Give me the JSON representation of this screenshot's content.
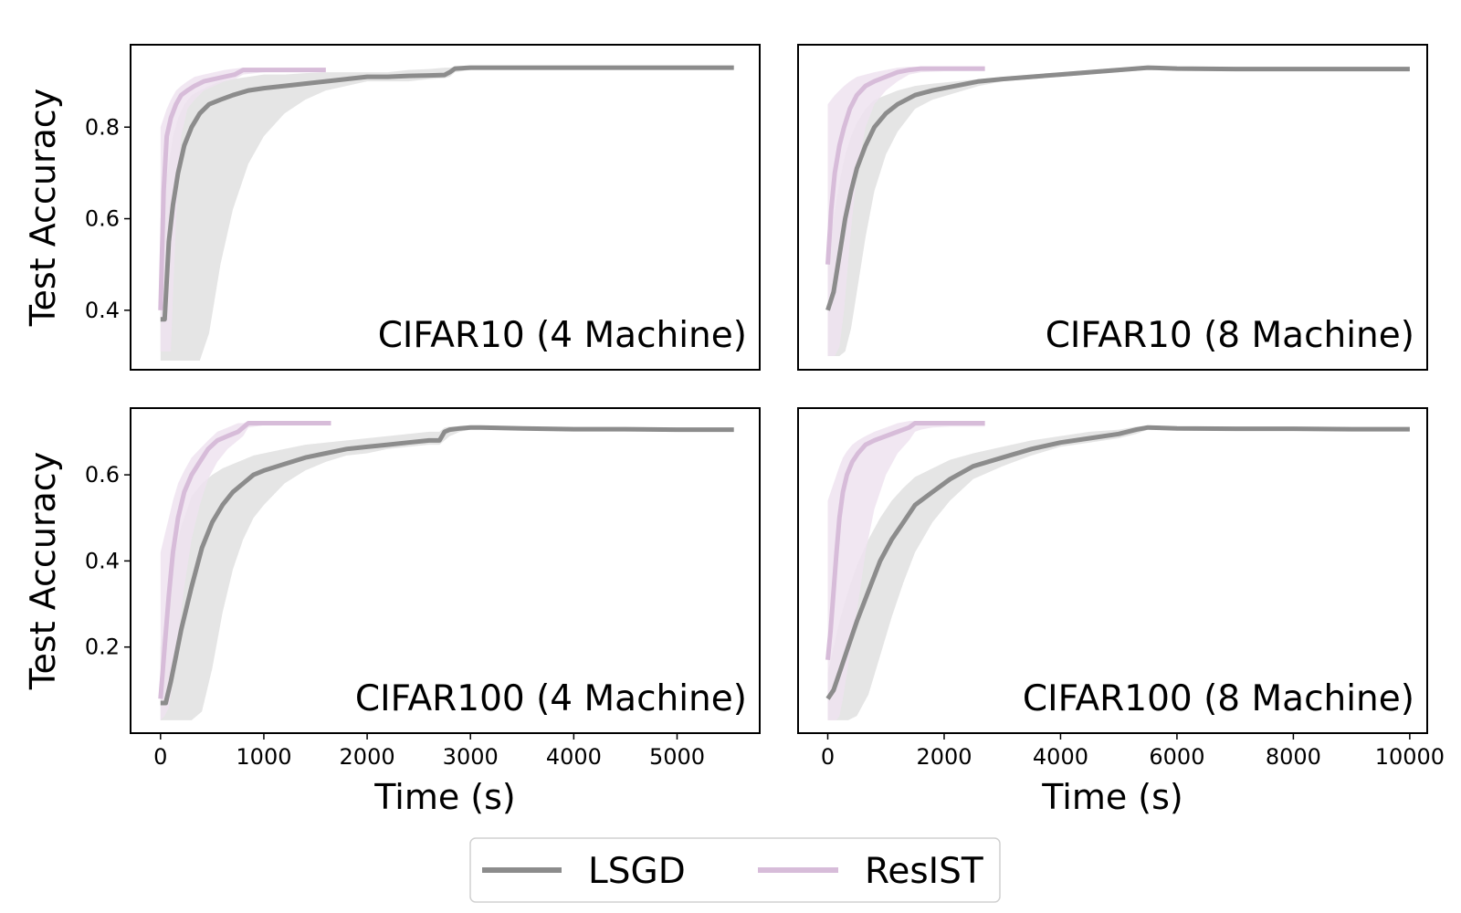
{
  "chart_data": [
    {
      "type": "line",
      "title": "CIFAR10 (4 Machine)",
      "xlabel": "",
      "ylabel": "Test Accuracy",
      "xlim": [
        -290,
        5800
      ],
      "ylim": [
        0.27,
        0.98
      ],
      "xticks": [],
      "yticks": [
        "0.4",
        "0.6",
        "0.8"
      ],
      "ytick_values": [
        0.4,
        0.6,
        0.8
      ],
      "series": [
        {
          "name": "LSGD",
          "color": "#8c8c8c",
          "band_color": "#e0e0e0",
          "x": [
            0,
            40,
            80,
            120,
            170,
            230,
            300,
            380,
            470,
            580,
            700,
            850,
            1000,
            1200,
            1400,
            1600,
            1800,
            2000,
            2200,
            2400,
            2600,
            2750,
            2800,
            2850,
            3000,
            3500,
            4000,
            4500,
            5000,
            5550
          ],
          "y": [
            0.38,
            0.38,
            0.55,
            0.63,
            0.7,
            0.76,
            0.8,
            0.83,
            0.85,
            0.86,
            0.87,
            0.88,
            0.885,
            0.89,
            0.895,
            0.9,
            0.905,
            0.91,
            0.91,
            0.912,
            0.913,
            0.914,
            0.92,
            0.928,
            0.93,
            0.93,
            0.93,
            0.93,
            0.93,
            0.93
          ],
          "lower": [
            0.29,
            0.29,
            0.29,
            0.29,
            0.29,
            0.29,
            0.29,
            0.29,
            0.35,
            0.5,
            0.62,
            0.72,
            0.78,
            0.83,
            0.86,
            0.88,
            0.89,
            0.9,
            0.9,
            0.9,
            0.905,
            0.907,
            0.91,
            0.92,
            0.925,
            0.928,
            0.928,
            0.928,
            0.928,
            0.928
          ],
          "upper": [
            0.6,
            0.66,
            0.72,
            0.78,
            0.82,
            0.85,
            0.87,
            0.88,
            0.89,
            0.9,
            0.905,
            0.91,
            0.915,
            0.915,
            0.918,
            0.92,
            0.92,
            0.92,
            0.92,
            0.925,
            0.927,
            0.93,
            0.93,
            0.932,
            0.932,
            0.932,
            0.932,
            0.932,
            0.932,
            0.932
          ]
        },
        {
          "name": "ResIST",
          "color": "#d7bcd9",
          "band_color": "#efe3f0",
          "x": [
            0,
            30,
            60,
            100,
            150,
            200,
            260,
            330,
            420,
            520,
            620,
            720,
            800,
            1000,
            1200,
            1400,
            1600
          ],
          "y": [
            0.4,
            0.66,
            0.78,
            0.82,
            0.85,
            0.87,
            0.88,
            0.89,
            0.9,
            0.905,
            0.91,
            0.915,
            0.925,
            0.925,
            0.925,
            0.925,
            0.925
          ],
          "lower": [
            0.31,
            0.31,
            0.31,
            0.31,
            0.6,
            0.78,
            0.84,
            0.86,
            0.88,
            0.89,
            0.9,
            0.905,
            0.915,
            0.92,
            0.922,
            0.922,
            0.922
          ],
          "upper": [
            0.8,
            0.82,
            0.84,
            0.86,
            0.88,
            0.89,
            0.9,
            0.91,
            0.915,
            0.92,
            0.925,
            0.928,
            0.93,
            0.93,
            0.93,
            0.93,
            0.93
          ]
        }
      ]
    },
    {
      "type": "line",
      "title": "CIFAR10 (8 Machine)",
      "xlabel": "",
      "ylabel": "",
      "xlim": [
        -510,
        10300
      ],
      "ylim": [
        0.27,
        0.98
      ],
      "xticks": [],
      "yticks": [],
      "series": [
        {
          "name": "LSGD",
          "color": "#8c8c8c",
          "band_color": "#e0e0e0",
          "x": [
            0,
            100,
            200,
            300,
            400,
            500,
            650,
            800,
            1000,
            1200,
            1500,
            1800,
            2200,
            2600,
            3000,
            3500,
            4000,
            4500,
            5000,
            5500,
            6000,
            7000,
            8000,
            9000,
            10000
          ],
          "y": [
            0.4,
            0.44,
            0.52,
            0.6,
            0.66,
            0.71,
            0.76,
            0.8,
            0.83,
            0.85,
            0.87,
            0.88,
            0.89,
            0.9,
            0.905,
            0.91,
            0.915,
            0.92,
            0.925,
            0.93,
            0.928,
            0.927,
            0.927,
            0.927,
            0.927
          ],
          "lower": [
            0.3,
            0.3,
            0.3,
            0.31,
            0.36,
            0.44,
            0.56,
            0.66,
            0.74,
            0.79,
            0.84,
            0.86,
            0.875,
            0.89,
            0.9,
            0.905,
            0.91,
            0.915,
            0.92,
            0.925,
            0.925,
            0.925,
            0.925,
            0.925,
            0.925
          ],
          "upper": [
            0.52,
            0.6,
            0.68,
            0.74,
            0.78,
            0.81,
            0.84,
            0.86,
            0.87,
            0.88,
            0.89,
            0.895,
            0.9,
            0.905,
            0.91,
            0.915,
            0.92,
            0.925,
            0.93,
            0.932,
            0.93,
            0.93,
            0.93,
            0.93,
            0.93
          ]
        },
        {
          "name": "ResIST",
          "color": "#d7bcd9",
          "band_color": "#efe3f0",
          "x": [
            0,
            60,
            120,
            200,
            280,
            380,
            500,
            650,
            800,
            1000,
            1200,
            1400,
            1600,
            2000,
            2400,
            2700
          ],
          "y": [
            0.5,
            0.62,
            0.7,
            0.76,
            0.8,
            0.84,
            0.87,
            0.89,
            0.9,
            0.91,
            0.92,
            0.925,
            0.928,
            0.928,
            0.928,
            0.928
          ],
          "lower": [
            0.3,
            0.3,
            0.3,
            0.32,
            0.4,
            0.55,
            0.7,
            0.8,
            0.85,
            0.88,
            0.9,
            0.915,
            0.92,
            0.922,
            0.922,
            0.922
          ],
          "upper": [
            0.85,
            0.86,
            0.87,
            0.88,
            0.89,
            0.9,
            0.91,
            0.915,
            0.92,
            0.925,
            0.93,
            0.932,
            0.932,
            0.932,
            0.932,
            0.932
          ]
        }
      ]
    },
    {
      "type": "line",
      "title": "CIFAR100 (4 Machine)",
      "xlabel": "Time (s)",
      "ylabel": "Test Accuracy",
      "xlim": [
        -290,
        5800
      ],
      "ylim": [
        0.0,
        0.755
      ],
      "xticks": [
        "0",
        "1000",
        "2000",
        "3000",
        "4000",
        "5000"
      ],
      "xtick_values": [
        0,
        1000,
        2000,
        3000,
        4000,
        5000
      ],
      "yticks": [
        "0.2",
        "0.4",
        "0.6"
      ],
      "ytick_values": [
        0.2,
        0.4,
        0.6
      ],
      "series": [
        {
          "name": "LSGD",
          "color": "#8c8c8c",
          "band_color": "#e0e0e0",
          "x": [
            0,
            50,
            100,
            150,
            200,
            300,
            400,
            500,
            600,
            700,
            800,
            900,
            1000,
            1200,
            1400,
            1600,
            1800,
            2000,
            2200,
            2400,
            2600,
            2700,
            2750,
            2800,
            2900,
            3000,
            3100,
            3500,
            4000,
            4500,
            5000,
            5550
          ],
          "y": [
            0.07,
            0.07,
            0.12,
            0.18,
            0.24,
            0.34,
            0.43,
            0.49,
            0.53,
            0.56,
            0.58,
            0.6,
            0.61,
            0.625,
            0.64,
            0.65,
            0.66,
            0.665,
            0.67,
            0.675,
            0.68,
            0.68,
            0.7,
            0.705,
            0.708,
            0.71,
            0.71,
            0.708,
            0.706,
            0.706,
            0.705,
            0.705
          ],
          "lower": [
            0.03,
            0.03,
            0.03,
            0.03,
            0.03,
            0.03,
            0.05,
            0.15,
            0.28,
            0.38,
            0.45,
            0.5,
            0.53,
            0.58,
            0.61,
            0.63,
            0.645,
            0.65,
            0.66,
            0.665,
            0.67,
            0.67,
            0.68,
            0.69,
            0.7,
            0.705,
            0.705,
            0.705,
            0.703,
            0.703,
            0.703,
            0.703
          ],
          "upper": [
            0.2,
            0.28,
            0.36,
            0.43,
            0.48,
            0.55,
            0.58,
            0.6,
            0.615,
            0.625,
            0.635,
            0.645,
            0.65,
            0.66,
            0.67,
            0.675,
            0.68,
            0.685,
            0.69,
            0.695,
            0.7,
            0.7,
            0.71,
            0.712,
            0.713,
            0.714,
            0.714,
            0.712,
            0.709,
            0.709,
            0.708,
            0.708
          ]
        },
        {
          "name": "ResIST",
          "color": "#d7bcd9",
          "band_color": "#efe3f0",
          "x": [
            0,
            40,
            80,
            120,
            170,
            230,
            300,
            380,
            460,
            550,
            650,
            750,
            800,
            850,
            1000,
            1200,
            1400,
            1650
          ],
          "y": [
            0.08,
            0.2,
            0.32,
            0.42,
            0.5,
            0.56,
            0.6,
            0.63,
            0.66,
            0.68,
            0.69,
            0.7,
            0.71,
            0.72,
            0.72,
            0.72,
            0.72,
            0.72
          ],
          "lower": [
            0.03,
            0.04,
            0.06,
            0.12,
            0.22,
            0.34,
            0.45,
            0.53,
            0.59,
            0.63,
            0.66,
            0.68,
            0.69,
            0.71,
            0.715,
            0.715,
            0.715,
            0.715
          ],
          "upper": [
            0.42,
            0.46,
            0.5,
            0.54,
            0.58,
            0.61,
            0.64,
            0.66,
            0.68,
            0.7,
            0.71,
            0.72,
            0.72,
            0.725,
            0.725,
            0.725,
            0.725,
            0.725
          ]
        }
      ]
    },
    {
      "type": "line",
      "title": "CIFAR100 (8 Machine)",
      "xlabel": "Time (s)",
      "ylabel": "",
      "xlim": [
        -510,
        10300
      ],
      "ylim": [
        0.0,
        0.755
      ],
      "xticks": [
        "0",
        "2000",
        "4000",
        "6000",
        "8000",
        "10000"
      ],
      "xtick_values": [
        0,
        2000,
        4000,
        6000,
        8000,
        10000
      ],
      "yticks": [],
      "series": [
        {
          "name": "LSGD",
          "color": "#8c8c8c",
          "band_color": "#e0e0e0",
          "x": [
            0,
            100,
            200,
            350,
            500,
            700,
            900,
            1100,
            1300,
            1500,
            1800,
            2100,
            2500,
            3000,
            3500,
            4000,
            4500,
            5000,
            5300,
            5500,
            6000,
            7000,
            8000,
            9000,
            10000
          ],
          "y": [
            0.08,
            0.1,
            0.14,
            0.2,
            0.26,
            0.33,
            0.4,
            0.45,
            0.49,
            0.53,
            0.56,
            0.59,
            0.62,
            0.64,
            0.66,
            0.675,
            0.685,
            0.695,
            0.705,
            0.71,
            0.708,
            0.707,
            0.707,
            0.706,
            0.706
          ],
          "lower": [
            0.03,
            0.03,
            0.03,
            0.03,
            0.04,
            0.09,
            0.18,
            0.27,
            0.35,
            0.42,
            0.49,
            0.54,
            0.59,
            0.62,
            0.645,
            0.665,
            0.675,
            0.685,
            0.695,
            0.705,
            0.705,
            0.704,
            0.704,
            0.704,
            0.704
          ],
          "upper": [
            0.14,
            0.2,
            0.26,
            0.33,
            0.39,
            0.45,
            0.5,
            0.54,
            0.57,
            0.595,
            0.615,
            0.635,
            0.65,
            0.665,
            0.68,
            0.69,
            0.7,
            0.705,
            0.712,
            0.714,
            0.711,
            0.71,
            0.71,
            0.709,
            0.709
          ]
        },
        {
          "name": "ResIST",
          "color": "#d7bcd9",
          "band_color": "#efe3f0",
          "x": [
            0,
            50,
            100,
            150,
            200,
            260,
            330,
            420,
            520,
            650,
            800,
            1000,
            1200,
            1400,
            1500,
            1600,
            1800,
            2100,
            2400,
            2700
          ],
          "y": [
            0.17,
            0.24,
            0.33,
            0.42,
            0.5,
            0.56,
            0.6,
            0.63,
            0.65,
            0.67,
            0.68,
            0.69,
            0.7,
            0.71,
            0.72,
            0.72,
            0.72,
            0.72,
            0.72,
            0.72
          ],
          "lower": [
            0.03,
            0.03,
            0.03,
            0.03,
            0.04,
            0.08,
            0.14,
            0.22,
            0.3,
            0.42,
            0.52,
            0.6,
            0.65,
            0.68,
            0.7,
            0.705,
            0.71,
            0.712,
            0.712,
            0.712
          ],
          "upper": [
            0.54,
            0.56,
            0.58,
            0.6,
            0.62,
            0.64,
            0.655,
            0.67,
            0.68,
            0.69,
            0.7,
            0.71,
            0.72,
            0.725,
            0.725,
            0.725,
            0.725,
            0.725,
            0.725,
            0.725
          ]
        }
      ]
    }
  ],
  "legend": {
    "position": "bottom-center",
    "items": [
      {
        "label": "LSGD",
        "color": "#8c8c8c"
      },
      {
        "label": "ResIST",
        "color": "#d7bcd9"
      }
    ]
  }
}
